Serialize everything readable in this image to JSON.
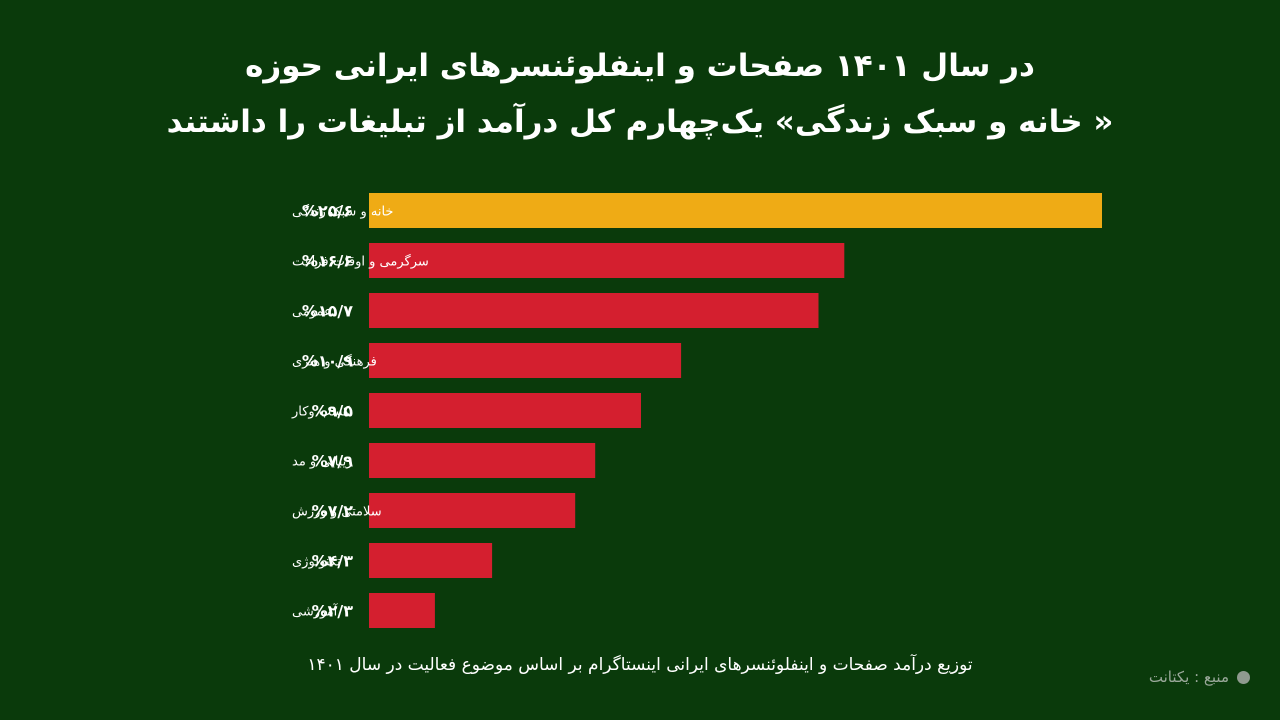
{
  "title": {
    "line1": "در سال ۱۴۰۱ صفحات و اینفلوئنسرهای ایرانی حوزه",
    "line2": "« خانه و سبک زندگی» یک‌چهارم کل درآمد از تبلیغات را داشتند"
  },
  "caption": "توزیع درآمد صفحات و اینفلوئنسرهای ایرانی اینستاگرام بر اساس موضوع فعالیت در سال ۱۴۰۱",
  "source": "منبع : یکتانت",
  "colors": {
    "background": "#0a3a0b",
    "highlight": "#efab15",
    "bar": "#d41f2f",
    "source_dot": "#8f9a8f"
  },
  "chart_data": {
    "type": "bar",
    "orientation": "horizontal",
    "categories": [
      "خانه و سبک زندگی",
      "سرگرمی و اوقات فراغت",
      "عمومی",
      "فرهنگی و هنری",
      "کسب وکار",
      "زیبایی و مد",
      "سلامتی و ورزش",
      "تکنولوژی",
      "آموزشی"
    ],
    "values": [
      25.6,
      16.6,
      15.7,
      10.9,
      9.5,
      7.9,
      7.2,
      4.3,
      2.3
    ],
    "value_labels": [
      "%۲۵/۶",
      "%۱۶/۶",
      "%۱۵/۷",
      "%۱۰/۹",
      "%۹/۵",
      "%۷/۹",
      "%۷/۲",
      "%۴/۳",
      "%۲/۳"
    ],
    "highlight_index": 0,
    "unit": "%",
    "grid": false
  }
}
